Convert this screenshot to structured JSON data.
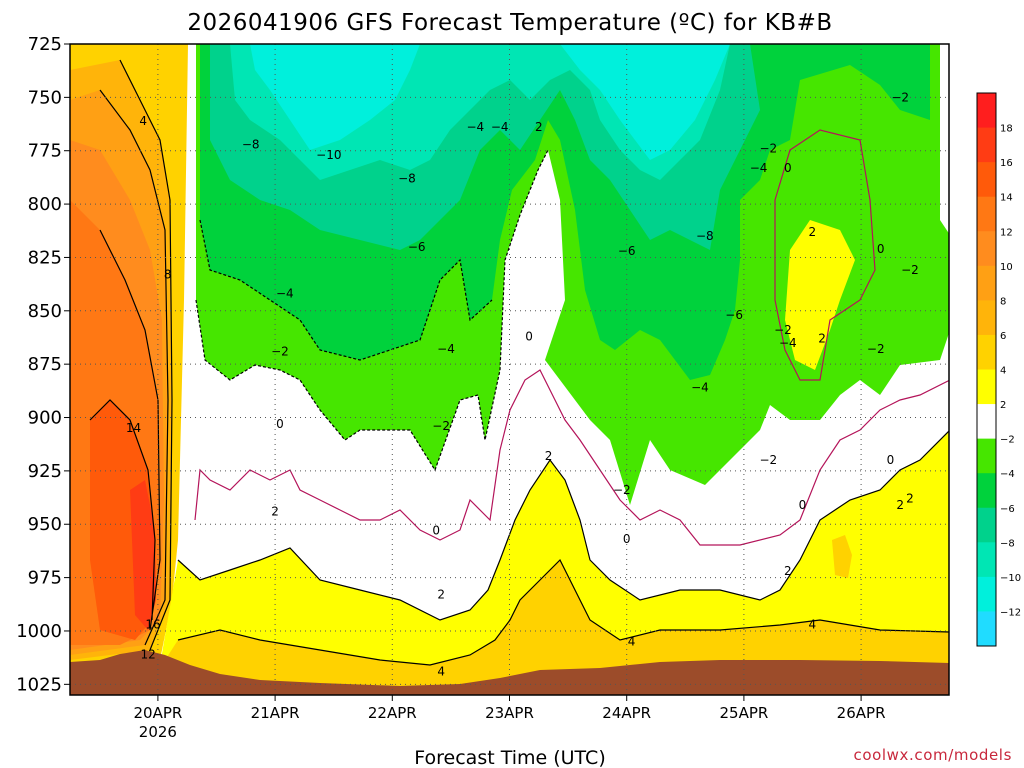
{
  "chart_data": {
    "type": "heatmap",
    "title": "2026041906 GFS Forecast Temperature (ºC) for KB#B",
    "xlabel": "Forecast Time (UTC)",
    "ylabel": "",
    "credit": "coolwx.com/models",
    "y_axis": {
      "ticks": [
        "725",
        "750",
        "775",
        "800",
        "825",
        "850",
        "875",
        "900",
        "925",
        "950",
        "975",
        "1000",
        "1025"
      ],
      "range": [
        725,
        1030
      ],
      "direction": "downward"
    },
    "x_axis": {
      "ticks": [
        {
          "label": "20APR",
          "sublabel": "2026",
          "hours": 18
        },
        {
          "label": "21APR",
          "sublabel": "",
          "hours": 42
        },
        {
          "label": "22APR",
          "sublabel": "",
          "hours": 66
        },
        {
          "label": "23APR",
          "sublabel": "",
          "hours": 90
        },
        {
          "label": "24APR",
          "sublabel": "",
          "hours": 114
        },
        {
          "label": "25APR",
          "sublabel": "",
          "hours": 138
        },
        {
          "label": "26APR",
          "sublabel": "",
          "hours": 162
        }
      ],
      "range_hours": [
        0,
        180
      ]
    },
    "grid": true,
    "colorbar": {
      "labels": [
        "18",
        "16",
        "14",
        "12",
        "10",
        "8",
        "6",
        "4",
        "2",
        "−2",
        "−4",
        "−6",
        "−8",
        "−10",
        "−12"
      ],
      "colors": [
        "#ff1e1e",
        "#ff3c14",
        "#ff5a0a",
        "#ff7814",
        "#ff8c1e",
        "#ffa014",
        "#ffb40a",
        "#ffd200",
        "#ffff00",
        "#ffffff",
        "#46e600",
        "#00d23c",
        "#00d28c",
        "#00e6b4",
        "#00f0dc",
        "#20dcff"
      ]
    },
    "contour_labels": [
      {
        "text": "4",
        "p": 761,
        "h": 15
      },
      {
        "text": "8",
        "p": 833,
        "h": 20
      },
      {
        "text": "14",
        "p": 905,
        "h": 13
      },
      {
        "text": "16",
        "p": 997,
        "h": 17
      },
      {
        "text": "12",
        "p": 1011,
        "h": 16
      },
      {
        "text": "−8",
        "p": 772,
        "h": 37
      },
      {
        "text": "−10",
        "p": 777,
        "h": 53
      },
      {
        "text": "−8",
        "p": 788,
        "h": 69
      },
      {
        "text": "−4",
        "p": 764,
        "h": 83
      },
      {
        "text": "−4",
        "p": 764,
        "h": 88
      },
      {
        "text": "2",
        "p": 764,
        "h": 96
      },
      {
        "text": "−6",
        "p": 820,
        "h": 71
      },
      {
        "text": "−4",
        "p": 842,
        "h": 44
      },
      {
        "text": "−2",
        "p": 869,
        "h": 43
      },
      {
        "text": "−4",
        "p": 868,
        "h": 77
      },
      {
        "text": "−2",
        "p": 904,
        "h": 76
      },
      {
        "text": "0",
        "p": 903,
        "h": 43
      },
      {
        "text": "2",
        "p": 944,
        "h": 42
      },
      {
        "text": "0",
        "p": 953,
        "h": 75
      },
      {
        "text": "2",
        "p": 983,
        "h": 76
      },
      {
        "text": "0",
        "p": 862,
        "h": 94
      },
      {
        "text": "2",
        "p": 918,
        "h": 98
      },
      {
        "text": "4",
        "p": 1019,
        "h": 76
      },
      {
        "text": "−6",
        "p": 822,
        "h": 114
      },
      {
        "text": "−8",
        "p": 815,
        "h": 130
      },
      {
        "text": "−6",
        "p": 852,
        "h": 136
      },
      {
        "text": "−4",
        "p": 886,
        "h": 129
      },
      {
        "text": "−4",
        "p": 783,
        "h": 141
      },
      {
        "text": "−2",
        "p": 774,
        "h": 143
      },
      {
        "text": "0",
        "p": 783,
        "h": 147
      },
      {
        "text": "−2",
        "p": 750,
        "h": 170
      },
      {
        "text": "2",
        "p": 813,
        "h": 152
      },
      {
        "text": "0",
        "p": 821,
        "h": 166
      },
      {
        "text": "−2",
        "p": 831,
        "h": 172
      },
      {
        "text": "−2",
        "p": 859,
        "h": 146
      },
      {
        "text": "−4",
        "p": 865,
        "h": 147
      },
      {
        "text": "2",
        "p": 863,
        "h": 154
      },
      {
        "text": "−2",
        "p": 868,
        "h": 165
      },
      {
        "text": "−2",
        "p": 934,
        "h": 113
      },
      {
        "text": "−2",
        "p": 920,
        "h": 143
      },
      {
        "text": "0",
        "p": 957,
        "h": 114
      },
      {
        "text": "0",
        "p": 941,
        "h": 150
      },
      {
        "text": "2",
        "p": 972,
        "h": 147
      },
      {
        "text": "4",
        "p": 1005,
        "h": 115
      },
      {
        "text": "4",
        "p": 997,
        "h": 152
      },
      {
        "text": "0",
        "p": 920,
        "h": 168
      },
      {
        "text": "2",
        "p": 941,
        "h": 170
      },
      {
        "text": "2",
        "p": 938,
        "h": 172
      }
    ]
  }
}
